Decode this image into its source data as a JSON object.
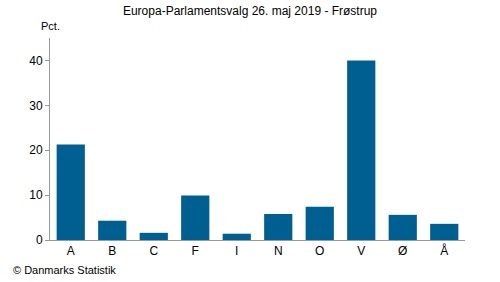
{
  "chart_data": {
    "type": "bar",
    "title": "Europa-Parlamentsvalg 26. maj 2019 - Frøstrup",
    "ylabel": "Pct.",
    "annotations": [
      "© Danmarks Statistik"
    ],
    "categories": [
      "A",
      "B",
      "C",
      "F",
      "I",
      "N",
      "O",
      "V",
      "Ø",
      "Å"
    ],
    "values": [
      21.3,
      4.3,
      1.6,
      9.9,
      1.4,
      5.8,
      7.4,
      40.0,
      5.6,
      3.6
    ],
    "color": "#005f91",
    "ylim": [
      0,
      45
    ],
    "yticks": [
      0,
      10,
      20,
      30,
      40
    ],
    "grid": false
  }
}
